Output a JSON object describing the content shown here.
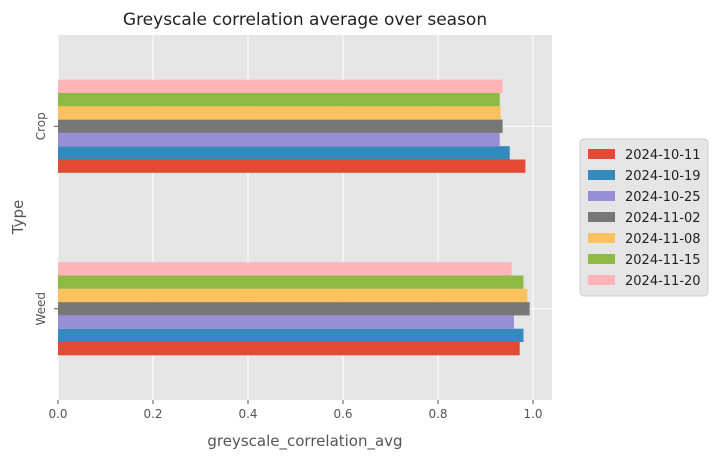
{
  "chart_data": {
    "type": "bar",
    "orientation": "horizontal",
    "title": "Greyscale correlation average over season",
    "xlabel": "greyscale_correlation_avg",
    "ylabel": "Type",
    "xlim": [
      0,
      1.04
    ],
    "xticks": [
      "0.0",
      "0.2",
      "0.4",
      "0.6",
      "0.8",
      "1.0"
    ],
    "xtick_values": [
      0,
      0.2,
      0.4,
      0.6,
      0.8,
      1.0
    ],
    "categories": [
      "Weed",
      "Crop"
    ],
    "grid": true,
    "legend_position": "right",
    "series": [
      {
        "name": "2024-10-11",
        "color": "#E24A33",
        "values": [
          0.972,
          0.984
        ]
      },
      {
        "name": "2024-10-19",
        "color": "#348ABD",
        "values": [
          0.98,
          0.951
        ]
      },
      {
        "name": "2024-10-25",
        "color": "#988ED5",
        "values": [
          0.96,
          0.93
        ]
      },
      {
        "name": "2024-11-02",
        "color": "#777777",
        "values": [
          0.993,
          0.936
        ]
      },
      {
        "name": "2024-11-08",
        "color": "#FBC15E",
        "values": [
          0.988,
          0.932
        ]
      },
      {
        "name": "2024-11-15",
        "color": "#8EBA42",
        "values": [
          0.98,
          0.93
        ]
      },
      {
        "name": "2024-11-20",
        "color": "#FFB5B8",
        "values": [
          0.955,
          0.936
        ]
      }
    ]
  }
}
